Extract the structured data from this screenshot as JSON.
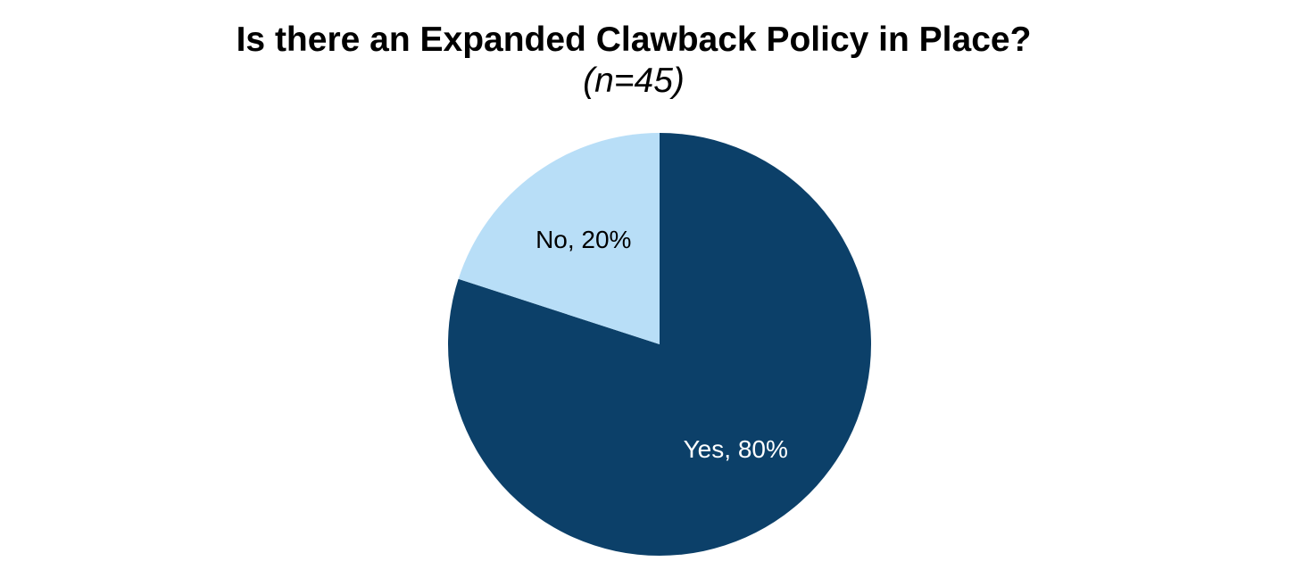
{
  "chart_data": {
    "type": "pie",
    "title": "Is there an Expanded Clawback Policy in Place?",
    "subtitle": "(n=45)",
    "slices": [
      {
        "label": "Yes",
        "value": 80,
        "data_label": "Yes, 80%",
        "color": "#0c4069",
        "label_color": "#ffffff"
      },
      {
        "label": "No",
        "value": 20,
        "data_label": "No, 20%",
        "color": "#b8def7",
        "label_color": "#000000"
      }
    ],
    "start": "12 o'clock",
    "direction": "clockwise",
    "legend": "none"
  }
}
